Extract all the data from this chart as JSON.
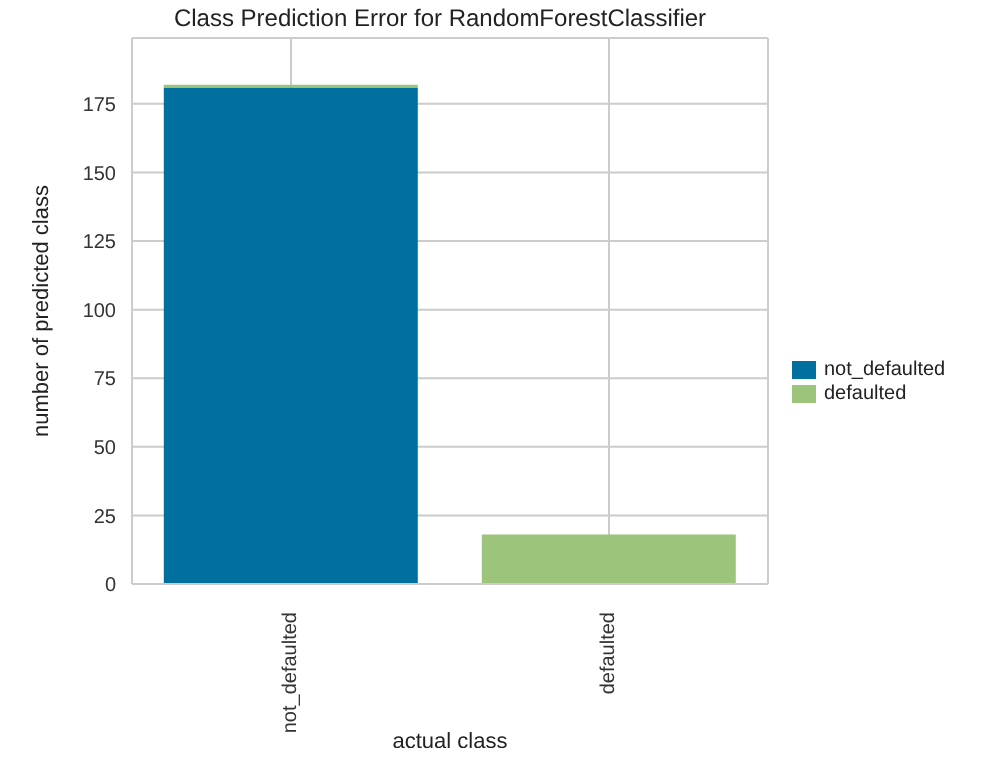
{
  "chart_data": {
    "type": "bar",
    "title": "Class Prediction Error for RandomForestClassifier",
    "xlabel": "actual class",
    "ylabel": "number of predicted class",
    "categories": [
      "not_defaulted",
      "defaulted"
    ],
    "stacked": true,
    "series": [
      {
        "name": "not_defaulted",
        "color": "#02709e",
        "values": [
          181,
          0
        ]
      },
      {
        "name": "defaulted",
        "color": "#9cc47b",
        "values": [
          1,
          18
        ]
      }
    ],
    "ylim": [
      0,
      199
    ],
    "yticks": [
      0,
      25,
      50,
      75,
      100,
      125,
      150,
      175
    ],
    "grid": true,
    "legend": "right"
  }
}
